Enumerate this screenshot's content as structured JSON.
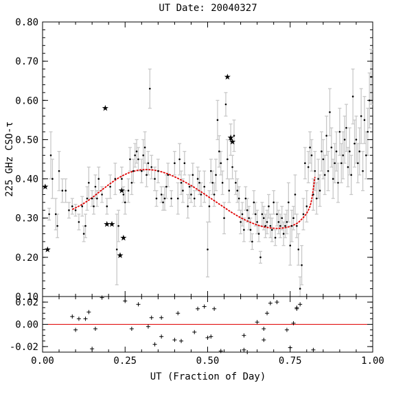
{
  "chart_data": [
    {
      "type": "scatter",
      "panel": "main",
      "title": "UT Date: 20040327",
      "ylabel": "225 GHz CSO-τ",
      "ylim": [
        0.1,
        0.8
      ],
      "xlim": [
        0.0,
        1.0
      ],
      "yticks": [
        "0.10",
        "0.20",
        "0.30",
        "0.40",
        "0.50",
        "0.60",
        "0.70",
        "0.80"
      ],
      "points": [
        [
          0.02,
          0.31,
          0.015
        ],
        [
          0.025,
          0.46,
          0.06
        ],
        [
          0.03,
          0.4,
          0.05
        ],
        [
          0.04,
          0.31,
          0.04
        ],
        [
          0.045,
          0.28,
          0.03
        ],
        [
          0.05,
          0.42,
          0.05
        ],
        [
          0.06,
          0.37,
          0.03
        ],
        [
          0.07,
          0.37,
          0.03
        ],
        [
          0.08,
          0.32,
          0.02
        ],
        [
          0.09,
          0.33,
          0.02
        ],
        [
          0.1,
          0.32,
          0.015
        ],
        [
          0.11,
          0.29,
          0.02
        ],
        [
          0.12,
          0.33,
          0.025
        ],
        [
          0.125,
          0.26,
          0.02
        ],
        [
          0.13,
          0.28,
          0.03
        ],
        [
          0.135,
          0.35,
          0.03
        ],
        [
          0.14,
          0.39,
          0.04
        ],
        [
          0.15,
          0.35,
          0.02
        ],
        [
          0.155,
          0.33,
          0.02
        ],
        [
          0.16,
          0.38,
          0.03
        ],
        [
          0.165,
          0.35,
          0.02
        ],
        [
          0.17,
          0.4,
          0.03
        ],
        [
          0.18,
          0.36,
          0.02
        ],
        [
          0.195,
          0.33,
          0.02
        ],
        [
          0.205,
          0.38,
          0.03
        ],
        [
          0.22,
          0.4,
          0.04
        ],
        [
          0.225,
          0.22,
          0.09
        ],
        [
          0.23,
          0.28,
          0.04
        ],
        [
          0.24,
          0.4,
          0.03
        ],
        [
          0.245,
          0.36,
          0.02
        ],
        [
          0.25,
          0.34,
          0.03
        ],
        [
          0.26,
          0.37,
          0.03
        ],
        [
          0.265,
          0.45,
          0.03
        ],
        [
          0.27,
          0.39,
          0.03
        ],
        [
          0.275,
          0.42,
          0.03
        ],
        [
          0.28,
          0.46,
          0.03
        ],
        [
          0.285,
          0.47,
          0.03
        ],
        [
          0.29,
          0.45,
          0.03
        ],
        [
          0.3,
          0.42,
          0.03
        ],
        [
          0.305,
          0.46,
          0.04
        ],
        [
          0.31,
          0.48,
          0.04
        ],
        [
          0.315,
          0.41,
          0.03
        ],
        [
          0.32,
          0.44,
          0.03
        ],
        [
          0.325,
          0.63,
          0.05
        ],
        [
          0.33,
          0.43,
          0.03
        ],
        [
          0.34,
          0.4,
          0.03
        ],
        [
          0.345,
          0.35,
          0.02
        ],
        [
          0.35,
          0.42,
          0.03
        ],
        [
          0.36,
          0.36,
          0.02
        ],
        [
          0.365,
          0.34,
          0.02
        ],
        [
          0.37,
          0.35,
          0.03
        ],
        [
          0.375,
          0.38,
          0.03
        ],
        [
          0.38,
          0.41,
          0.03
        ],
        [
          0.39,
          0.35,
          0.02
        ],
        [
          0.4,
          0.44,
          0.03
        ],
        [
          0.41,
          0.35,
          0.04
        ],
        [
          0.415,
          0.45,
          0.04
        ],
        [
          0.42,
          0.39,
          0.03
        ],
        [
          0.425,
          0.37,
          0.03
        ],
        [
          0.43,
          0.44,
          0.03
        ],
        [
          0.44,
          0.33,
          0.03
        ],
        [
          0.445,
          0.38,
          0.03
        ],
        [
          0.45,
          0.36,
          0.02
        ],
        [
          0.455,
          0.41,
          0.03
        ],
        [
          0.46,
          0.35,
          0.02
        ],
        [
          0.47,
          0.4,
          0.03
        ],
        [
          0.475,
          0.39,
          0.03
        ],
        [
          0.48,
          0.36,
          0.03
        ],
        [
          0.49,
          0.38,
          0.04
        ],
        [
          0.5,
          0.22,
          0.07
        ],
        [
          0.505,
          0.33,
          0.04
        ],
        [
          0.51,
          0.42,
          0.03
        ],
        [
          0.515,
          0.39,
          0.03
        ],
        [
          0.52,
          0.36,
          0.03
        ],
        [
          0.525,
          0.41,
          0.04
        ],
        [
          0.53,
          0.55,
          0.05
        ],
        [
          0.535,
          0.47,
          0.04
        ],
        [
          0.54,
          0.44,
          0.03
        ],
        [
          0.545,
          0.39,
          0.03
        ],
        [
          0.55,
          0.3,
          0.04
        ],
        [
          0.555,
          0.59,
          0.03
        ],
        [
          0.56,
          0.45,
          0.05
        ],
        [
          0.565,
          0.37,
          0.03
        ],
        [
          0.57,
          0.5,
          0.04
        ],
        [
          0.575,
          0.43,
          0.03
        ],
        [
          0.58,
          0.51,
          0.04
        ],
        [
          0.585,
          0.39,
          0.03
        ],
        [
          0.59,
          0.37,
          0.03
        ],
        [
          0.595,
          0.35,
          0.03
        ],
        [
          0.6,
          0.29,
          0.03
        ],
        [
          0.605,
          0.31,
          0.03
        ],
        [
          0.61,
          0.27,
          0.03
        ],
        [
          0.615,
          0.35,
          0.03
        ],
        [
          0.62,
          0.32,
          0.03
        ],
        [
          0.625,
          0.3,
          0.03
        ],
        [
          0.63,
          0.27,
          0.03
        ],
        [
          0.635,
          0.24,
          0.02
        ],
        [
          0.64,
          0.34,
          0.03
        ],
        [
          0.645,
          0.31,
          0.03
        ],
        [
          0.65,
          0.29,
          0.03
        ],
        [
          0.655,
          0.26,
          0.02
        ],
        [
          0.66,
          0.2,
          0.015
        ],
        [
          0.665,
          0.31,
          0.03
        ],
        [
          0.67,
          0.3,
          0.03
        ],
        [
          0.675,
          0.28,
          0.03
        ],
        [
          0.68,
          0.29,
          0.03
        ],
        [
          0.685,
          0.33,
          0.03
        ],
        [
          0.69,
          0.28,
          0.03
        ],
        [
          0.695,
          0.27,
          0.03
        ],
        [
          0.7,
          0.34,
          0.03
        ],
        [
          0.705,
          0.25,
          0.02
        ],
        [
          0.71,
          0.31,
          0.03
        ],
        [
          0.715,
          0.29,
          0.03
        ],
        [
          0.72,
          0.28,
          0.03
        ],
        [
          0.725,
          0.3,
          0.03
        ],
        [
          0.73,
          0.26,
          0.03
        ],
        [
          0.735,
          0.28,
          0.03
        ],
        [
          0.74,
          0.29,
          0.03
        ],
        [
          0.745,
          0.34,
          0.05
        ],
        [
          0.75,
          0.23,
          0.05
        ],
        [
          0.755,
          0.28,
          0.04
        ],
        [
          0.76,
          0.3,
          0.03
        ],
        [
          0.765,
          0.36,
          0.05
        ],
        [
          0.77,
          0.28,
          0.03
        ],
        [
          0.775,
          0.22,
          0.04
        ],
        [
          0.78,
          0.12,
          0.03
        ],
        [
          0.785,
          0.18,
          0.05
        ],
        [
          0.79,
          0.31,
          0.04
        ],
        [
          0.795,
          0.44,
          0.04
        ],
        [
          0.8,
          0.33,
          0.04
        ],
        [
          0.805,
          0.43,
          0.04
        ],
        [
          0.81,
          0.48,
          0.04
        ],
        [
          0.815,
          0.46,
          0.04
        ],
        [
          0.82,
          0.36,
          0.04
        ],
        [
          0.825,
          0.42,
          0.05
        ],
        [
          0.83,
          0.35,
          0.04
        ],
        [
          0.835,
          0.4,
          0.05
        ],
        [
          0.84,
          0.37,
          0.04
        ],
        [
          0.845,
          0.47,
          0.05
        ],
        [
          0.85,
          0.45,
          0.05
        ],
        [
          0.855,
          0.41,
          0.05
        ],
        [
          0.86,
          0.51,
          0.05
        ],
        [
          0.865,
          0.42,
          0.05
        ],
        [
          0.87,
          0.57,
          0.06
        ],
        [
          0.875,
          0.48,
          0.05
        ],
        [
          0.88,
          0.4,
          0.05
        ],
        [
          0.885,
          0.44,
          0.05
        ],
        [
          0.89,
          0.47,
          0.05
        ],
        [
          0.895,
          0.39,
          0.05
        ],
        [
          0.9,
          0.52,
          0.06
        ],
        [
          0.905,
          0.44,
          0.05
        ],
        [
          0.91,
          0.46,
          0.06
        ],
        [
          0.915,
          0.5,
          0.06
        ],
        [
          0.92,
          0.53,
          0.06
        ],
        [
          0.925,
          0.43,
          0.05
        ],
        [
          0.93,
          0.47,
          0.06
        ],
        [
          0.935,
          0.41,
          0.05
        ],
        [
          0.94,
          0.61,
          0.07
        ],
        [
          0.945,
          0.49,
          0.06
        ],
        [
          0.95,
          0.5,
          0.06
        ],
        [
          0.955,
          0.44,
          0.05
        ],
        [
          0.96,
          0.47,
          0.06
        ],
        [
          0.965,
          0.56,
          0.07
        ],
        [
          0.97,
          0.42,
          0.05
        ],
        [
          0.975,
          0.55,
          0.06
        ],
        [
          0.98,
          0.46,
          0.06
        ],
        [
          0.985,
          0.52,
          0.06
        ],
        [
          0.99,
          0.6,
          0.07
        ],
        [
          0.995,
          0.66,
          0.07
        ]
      ],
      "stars": [
        [
          0.008,
          0.38
        ],
        [
          0.015,
          0.22
        ],
        [
          0.19,
          0.58
        ],
        [
          0.195,
          0.285
        ],
        [
          0.21,
          0.285
        ],
        [
          0.24,
          0.37
        ],
        [
          0.235,
          0.205
        ],
        [
          0.245,
          0.25
        ],
        [
          0.56,
          0.66
        ],
        [
          0.57,
          0.505
        ],
        [
          0.575,
          0.495
        ]
      ],
      "fit_curve": [
        [
          0.09,
          0.322
        ],
        [
          0.12,
          0.335
        ],
        [
          0.15,
          0.352
        ],
        [
          0.18,
          0.372
        ],
        [
          0.21,
          0.391
        ],
        [
          0.24,
          0.407
        ],
        [
          0.27,
          0.418
        ],
        [
          0.3,
          0.423
        ],
        [
          0.33,
          0.423
        ],
        [
          0.36,
          0.418
        ],
        [
          0.39,
          0.409
        ],
        [
          0.42,
          0.397
        ],
        [
          0.45,
          0.383
        ],
        [
          0.48,
          0.367
        ],
        [
          0.51,
          0.35
        ],
        [
          0.54,
          0.333
        ],
        [
          0.57,
          0.316
        ],
        [
          0.6,
          0.301
        ],
        [
          0.63,
          0.289
        ],
        [
          0.66,
          0.28
        ],
        [
          0.69,
          0.275
        ],
        [
          0.72,
          0.274
        ],
        [
          0.75,
          0.279
        ],
        [
          0.78,
          0.293
        ],
        [
          0.81,
          0.33
        ],
        [
          0.825,
          0.405
        ]
      ]
    },
    {
      "type": "scatter",
      "panel": "residuals",
      "xlabel": "UT (Fraction of Day)",
      "ylabel": "",
      "xlim": [
        0.0,
        1.0
      ],
      "ylim": [
        -0.025,
        0.025
      ],
      "xticks": [
        "0.00",
        "0.25",
        "0.50",
        "0.75",
        "1.00"
      ],
      "yticks": [
        "-0.02",
        "0.00",
        "0.02"
      ],
      "zero_line": 0.0,
      "points": [
        [
          0.09,
          0.007
        ],
        [
          0.1,
          -0.005
        ],
        [
          0.11,
          0.005
        ],
        [
          0.13,
          0.005
        ],
        [
          0.14,
          0.011
        ],
        [
          0.15,
          -0.022
        ],
        [
          0.16,
          -0.004
        ],
        [
          0.18,
          0.024
        ],
        [
          0.25,
          0.021
        ],
        [
          0.27,
          -0.004
        ],
        [
          0.29,
          0.018
        ],
        [
          0.32,
          -0.002
        ],
        [
          0.33,
          0.006
        ],
        [
          0.34,
          -0.018
        ],
        [
          0.36,
          -0.011
        ],
        [
          0.36,
          0.006
        ],
        [
          0.4,
          -0.014
        ],
        [
          0.41,
          0.01
        ],
        [
          0.42,
          -0.015
        ],
        [
          0.46,
          -0.007
        ],
        [
          0.47,
          0.014
        ],
        [
          0.49,
          0.016
        ],
        [
          0.5,
          -0.012
        ],
        [
          0.51,
          -0.011
        ],
        [
          0.52,
          0.014
        ],
        [
          0.54,
          -0.024
        ],
        [
          0.61,
          -0.023
        ],
        [
          0.61,
          -0.01
        ],
        [
          0.62,
          -0.025
        ],
        [
          0.65,
          0.002
        ],
        [
          0.67,
          -0.014
        ],
        [
          0.67,
          -0.004
        ],
        [
          0.68,
          0.01
        ],
        [
          0.69,
          0.019
        ],
        [
          0.71,
          0.02
        ],
        [
          0.74,
          -0.005
        ],
        [
          0.75,
          -0.021
        ],
        [
          0.76,
          0.001
        ],
        [
          0.77,
          0.014
        ],
        [
          0.77,
          0.015
        ],
        [
          0.78,
          0.018
        ],
        [
          0.82,
          -0.023
        ]
      ]
    }
  ]
}
